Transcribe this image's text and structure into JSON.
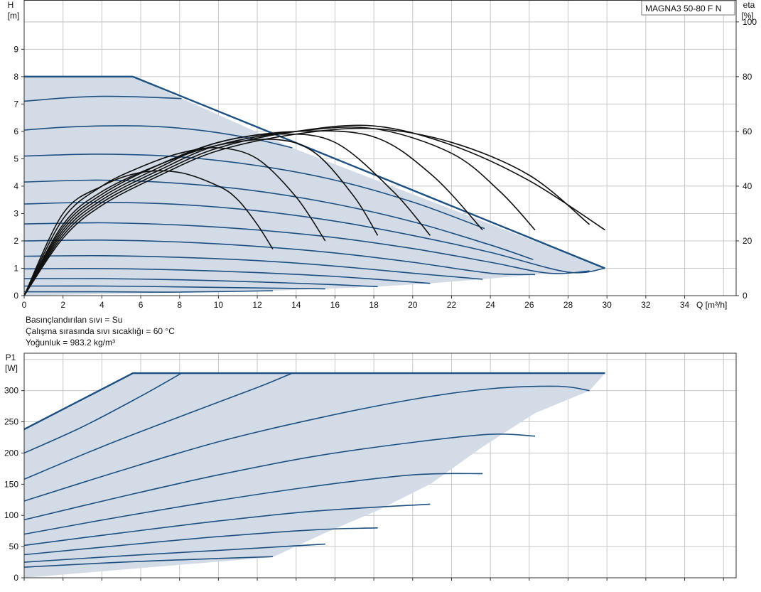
{
  "colors": {
    "envelope_fill": "#d3dce6",
    "curve": "#1c4f82",
    "efficiency": "#111111",
    "grid": "#c8c8c8",
    "axis": "#333333"
  },
  "model_label": "MAGNA3 50-80 F N",
  "notes": [
    "Basınçlandırılan sıvı = Su",
    "Çalışma sırasında sıvı sıcaklığı = 60 °C",
    "Yoğunluk = 983.2 kg/m³"
  ],
  "chart_data": [
    {
      "type": "line",
      "x_label": "Q [m³/h]",
      "y_label": [
        "H",
        "[m]"
      ],
      "y2_label": [
        "eta",
        "[%]"
      ],
      "xlim": [
        0,
        36
      ],
      "ylim": [
        0,
        10.8
      ],
      "y2lim": [
        0,
        108
      ],
      "x_ticks": [
        0,
        2,
        4,
        6,
        8,
        10,
        12,
        14,
        16,
        18,
        20,
        22,
        24,
        26,
        28,
        30,
        32,
        34
      ],
      "y_ticks": [
        0,
        1,
        2,
        3,
        4,
        5,
        6,
        7,
        8,
        9
      ],
      "y2_ticks": [
        0,
        20,
        40,
        60,
        80,
        100
      ],
      "grid": true,
      "envelope": {
        "x": [
          0,
          5.6,
          13.8,
          29.9,
          29.1,
          26.3,
          23.6,
          20.9,
          18.2,
          15.5,
          12.8,
          0
        ],
        "y": [
          8.0,
          8.0,
          5.4,
          1.0,
          0.9,
          0.77,
          0.6,
          0.45,
          0.33,
          0.25,
          0.18,
          0
        ]
      },
      "head_curves": [
        {
          "x": [
            0,
            5.6
          ],
          "y": [
            8.0,
            8.0
          ]
        },
        {
          "x": [
            0,
            2,
            4,
            6,
            8.1
          ],
          "y": [
            7.1,
            7.22,
            7.28,
            7.26,
            7.2
          ]
        },
        {
          "x": [
            0,
            2,
            4,
            6,
            8,
            10,
            12,
            13.8
          ],
          "y": [
            6.05,
            6.15,
            6.2,
            6.2,
            6.12,
            5.95,
            5.7,
            5.4
          ]
        },
        {
          "x": [
            0,
            4,
            8,
            12,
            16,
            20,
            23.7
          ],
          "y": [
            5.1,
            5.17,
            5.07,
            4.75,
            4.22,
            3.42,
            2.45
          ]
        },
        {
          "x": [
            0,
            4,
            8,
            12,
            16,
            20,
            24,
            26.2
          ],
          "y": [
            4.15,
            4.22,
            4.1,
            3.82,
            3.35,
            2.7,
            1.85,
            1.32
          ]
        },
        {
          "x": [
            0,
            4,
            8,
            12,
            16,
            20,
            24,
            28,
            29.9
          ],
          "y": [
            3.35,
            3.41,
            3.33,
            3.1,
            2.72,
            2.2,
            1.58,
            0.86,
            1.0
          ]
        },
        {
          "x": [
            0,
            4,
            8,
            12,
            16,
            20,
            24,
            27,
            29.1
          ],
          "y": [
            2.62,
            2.66,
            2.58,
            2.4,
            2.12,
            1.72,
            1.22,
            0.82,
            0.9
          ]
        },
        {
          "x": [
            0,
            4,
            8,
            12,
            16,
            20,
            24,
            26.3
          ],
          "y": [
            2.0,
            2.03,
            1.96,
            1.8,
            1.56,
            1.22,
            0.82,
            0.77
          ]
        },
        {
          "x": [
            0,
            4,
            8,
            12,
            16,
            20,
            23.6
          ],
          "y": [
            1.44,
            1.46,
            1.4,
            1.28,
            1.08,
            0.82,
            0.6
          ]
        },
        {
          "x": [
            0,
            4,
            8,
            12,
            16,
            20.9
          ],
          "y": [
            0.98,
            0.99,
            0.94,
            0.84,
            0.7,
            0.45
          ]
        },
        {
          "x": [
            0,
            4,
            8,
            12,
            16,
            18.2
          ],
          "y": [
            0.62,
            0.62,
            0.58,
            0.5,
            0.4,
            0.33
          ]
        },
        {
          "x": [
            0,
            4,
            8,
            12,
            15.5
          ],
          "y": [
            0.35,
            0.35,
            0.32,
            0.28,
            0.25
          ]
        },
        {
          "x": [
            0,
            4,
            8,
            12.8
          ],
          "y": [
            0.14,
            0.14,
            0.13,
            0.18
          ]
        }
      ],
      "efficiency_curves": [
        {
          "x": [
            0,
            2,
            4,
            6,
            8,
            10,
            11,
            12,
            12.8
          ],
          "y": [
            0,
            30,
            40,
            45,
            45,
            40,
            35,
            26,
            17
          ]
        },
        {
          "x": [
            0,
            2,
            4,
            6,
            8,
            10,
            12,
            14,
            15.5
          ],
          "y": [
            0,
            28,
            40,
            47,
            52,
            54,
            50,
            36,
            20
          ]
        },
        {
          "x": [
            0,
            2,
            4,
            7,
            10,
            13,
            15,
            17,
            18.2
          ],
          "y": [
            0,
            26,
            38,
            48,
            55,
            57,
            52,
            36,
            22
          ]
        },
        {
          "x": [
            0,
            2,
            4,
            7,
            10,
            13,
            16,
            19,
            20.9
          ],
          "y": [
            0,
            25,
            37,
            48,
            56,
            59,
            56,
            38,
            22
          ]
        },
        {
          "x": [
            0,
            2,
            4,
            7,
            10,
            14,
            18,
            21,
            23.6
          ],
          "y": [
            0,
            24,
            36,
            47,
            56,
            60,
            58,
            44,
            24
          ]
        },
        {
          "x": [
            0,
            2,
            4,
            7,
            10,
            14,
            18,
            22,
            24.5,
            26.3
          ],
          "y": [
            0,
            23,
            35,
            46,
            55,
            60,
            61,
            52,
            38,
            24
          ]
        },
        {
          "x": [
            0,
            2,
            4,
            7,
            10,
            14,
            18,
            22,
            26,
            29.9
          ],
          "y": [
            0,
            22,
            34,
            45,
            54,
            60,
            62,
            55,
            42,
            24
          ]
        },
        {
          "x": [
            0,
            2,
            4,
            7,
            10,
            14,
            18,
            22,
            26,
            29.1
          ],
          "y": [
            0,
            21,
            33,
            44,
            53,
            59,
            61,
            56,
            44,
            26
          ]
        }
      ]
    },
    {
      "type": "line",
      "y_label": [
        "P1",
        "[W]"
      ],
      "xlim": [
        0,
        36
      ],
      "ylim": [
        0,
        360
      ],
      "y_ticks": [
        0,
        50,
        100,
        150,
        200,
        250,
        300
      ],
      "grid": true,
      "envelope": {
        "x": [
          0,
          5.6,
          29.9,
          29.1,
          26.3,
          23.6,
          20.9,
          18.2,
          15.5,
          12.8,
          0
        ],
        "y": [
          238,
          328,
          328,
          300,
          264,
          210,
          150,
          108,
          72,
          33,
          0
        ]
      },
      "power_curves": [
        {
          "x": [
            0,
            5.6,
            29.9
          ],
          "y": [
            238,
            328,
            328
          ]
        },
        {
          "x": [
            0,
            3,
            6,
            8.1
          ],
          "y": [
            200,
            242,
            291,
            328
          ]
        },
        {
          "x": [
            0,
            4,
            8,
            12,
            13.8
          ],
          "y": [
            158,
            210,
            258,
            305,
            328
          ]
        },
        {
          "x": [
            0,
            5,
            10,
            15,
            20,
            24,
            27.5,
            29.1
          ],
          "y": [
            123,
            172,
            218,
            255,
            286,
            303,
            307,
            300
          ]
        },
        {
          "x": [
            0,
            5,
            10,
            15,
            20,
            24,
            26.3
          ],
          "y": [
            93,
            130,
            165,
            195,
            217,
            230,
            227
          ]
        },
        {
          "x": [
            0,
            5,
            10,
            15,
            20,
            23.6
          ],
          "y": [
            70,
            98,
            124,
            147,
            165,
            167
          ]
        },
        {
          "x": [
            0,
            5,
            10,
            15,
            20.9
          ],
          "y": [
            52,
            72,
            91,
            107,
            118
          ]
        },
        {
          "x": [
            0,
            5,
            10,
            15,
            18.2
          ],
          "y": [
            37,
            52,
            66,
            77,
            80
          ]
        },
        {
          "x": [
            0,
            5,
            10,
            15.5
          ],
          "y": [
            25,
            35,
            44,
            54
          ]
        },
        {
          "x": [
            0,
            5,
            10,
            12.8
          ],
          "y": [
            17,
            25,
            31,
            34
          ]
        }
      ]
    }
  ]
}
